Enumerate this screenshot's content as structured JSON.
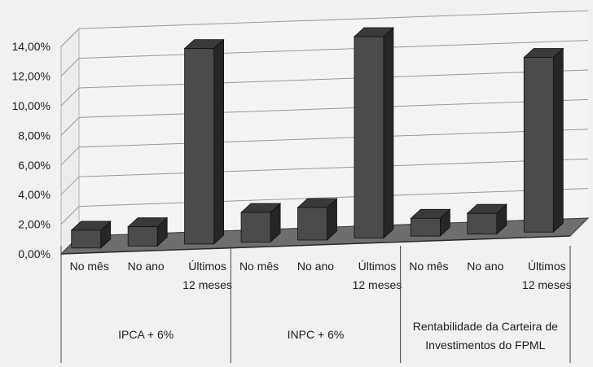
{
  "chart_data": {
    "type": "bar",
    "style": "3d-column",
    "y_ticks": [
      "0,00%",
      "2,00%",
      "4,00%",
      "6,00%",
      "8,00%",
      "10,00%",
      "12,00%",
      "14,00%"
    ],
    "ylim": [
      0,
      14
    ],
    "grid": true,
    "legend": "none",
    "groups": [
      {
        "label": [
          "IPCA + 6%"
        ],
        "categories": [
          [
            "No mês"
          ],
          [
            "No ano"
          ],
          [
            "Últimos",
            "12 meses"
          ]
        ],
        "values": [
          1.2,
          1.3,
          13.2
        ]
      },
      {
        "label": [
          "INPC + 6%"
        ],
        "categories": [
          [
            "No mês"
          ],
          [
            "No ano"
          ],
          [
            "Últimos",
            "12 meses"
          ]
        ],
        "values": [
          2.0,
          2.2,
          13.6
        ]
      },
      {
        "label": [
          "Rentabilidade da Carteira de",
          "Investimentos do FPML"
        ],
        "categories": [
          [
            "No mês"
          ],
          [
            "No ano"
          ],
          [
            "Últimos",
            "12 meses"
          ]
        ],
        "values": [
          1.2,
          1.4,
          11.8
        ]
      }
    ],
    "colors": {
      "bar_front": "#4b4b4b",
      "bar_side": "#262626",
      "bar_top": "#3a3a3a",
      "grid": "#9a9a9a",
      "floor": "#6e6e6e"
    }
  }
}
